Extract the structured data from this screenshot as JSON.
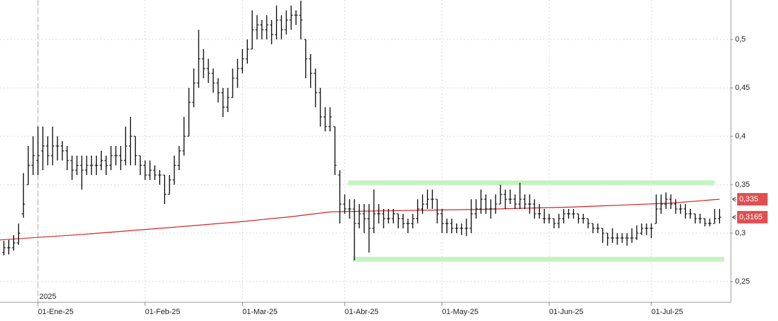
{
  "chart_data": {
    "type": "ohlc",
    "color": "#000000",
    "grid": true,
    "xlim": [
      -7.8,
      142.2
    ],
    "ylim": [
      0.2286,
      0.5407
    ],
    "yticks": [
      {
        "value": 0.25,
        "label": "0,25"
      },
      {
        "value": 0.3,
        "label": "0,3"
      },
      {
        "value": 0.35,
        "label": "0,35"
      },
      {
        "value": 0.4,
        "label": "0,4"
      },
      {
        "value": 0.45,
        "label": "0,45"
      },
      {
        "value": 0.5,
        "label": "0,5"
      }
    ],
    "xticks": [
      {
        "value": 0,
        "label": "01-Ene-25"
      },
      {
        "value": 22,
        "label": "01-Feb-25"
      },
      {
        "value": 42,
        "label": "01-Mar-25"
      },
      {
        "value": 63,
        "label": "01-Abr-25"
      },
      {
        "value": 83,
        "label": "01-May-25"
      },
      {
        "value": 105,
        "label": "01-Jun-25"
      },
      {
        "value": 126,
        "label": "01-Jul-25"
      }
    ],
    "year_marker": {
      "value": 0,
      "label": "2025"
    },
    "x": [
      -7,
      -6,
      -5,
      -4,
      -3,
      -2,
      -1,
      0,
      1,
      2,
      3,
      4,
      5,
      6,
      7,
      8,
      9,
      10,
      11,
      12,
      13,
      14,
      15,
      16,
      17,
      18,
      19,
      20,
      21,
      22,
      23,
      24,
      25,
      26,
      27,
      28,
      29,
      30,
      31,
      32,
      33,
      34,
      35,
      36,
      37,
      38,
      39,
      40,
      41,
      42,
      43,
      44,
      45,
      46,
      47,
      48,
      49,
      50,
      51,
      52,
      53,
      54,
      55,
      56,
      57,
      58,
      59,
      60,
      61,
      62,
      63,
      64,
      65,
      66,
      67,
      68,
      69,
      70,
      71,
      72,
      73,
      74,
      75,
      76,
      77,
      78,
      79,
      80,
      81,
      82,
      83,
      84,
      85,
      86,
      87,
      88,
      89,
      90,
      91,
      92,
      93,
      94,
      95,
      96,
      97,
      98,
      99,
      100,
      101,
      102,
      103,
      104,
      105,
      106,
      107,
      108,
      109,
      110,
      111,
      112,
      113,
      114,
      115,
      116,
      117,
      118,
      119,
      120,
      121,
      122,
      123,
      124,
      125,
      126,
      127,
      128,
      129,
      130,
      131,
      132,
      133,
      134,
      135,
      136,
      137,
      138,
      139,
      140
    ],
    "open": [
      0.28,
      0.285,
      0.285,
      0.29,
      0.32,
      0.35,
      0.37,
      0.375,
      0.385,
      0.39,
      0.38,
      0.39,
      0.39,
      0.385,
      0.375,
      0.365,
      0.37,
      0.365,
      0.37,
      0.37,
      0.37,
      0.375,
      0.37,
      0.38,
      0.38,
      0.375,
      0.39,
      0.4,
      0.38,
      0.37,
      0.36,
      0.365,
      0.36,
      0.36,
      0.34,
      0.355,
      0.37,
      0.385,
      0.4,
      0.435,
      0.455,
      0.48,
      0.47,
      0.465,
      0.455,
      0.445,
      0.43,
      0.44,
      0.46,
      0.47,
      0.48,
      0.49,
      0.51,
      0.515,
      0.51,
      0.515,
      0.505,
      0.52,
      0.51,
      0.52,
      0.525,
      0.525,
      0.5,
      0.48,
      0.465,
      0.445,
      0.42,
      0.41,
      0.41,
      0.36,
      0.33,
      0.325,
      0.325,
      0.31,
      0.32,
      0.315,
      0.305,
      0.32,
      0.32,
      0.315,
      0.315,
      0.32,
      0.315,
      0.31,
      0.31,
      0.315,
      0.325,
      0.33,
      0.335,
      0.335,
      0.32,
      0.31,
      0.31,
      0.305,
      0.305,
      0.305,
      0.305,
      0.32,
      0.325,
      0.335,
      0.325,
      0.325,
      0.33,
      0.34,
      0.335,
      0.335,
      0.33,
      0.335,
      0.33,
      0.33,
      0.32,
      0.315,
      0.315,
      0.315,
      0.31,
      0.315,
      0.32,
      0.32,
      0.32,
      0.315,
      0.315,
      0.31,
      0.305,
      0.305,
      0.3,
      0.295,
      0.295,
      0.295,
      0.295,
      0.295,
      0.295,
      0.3,
      0.305,
      0.305,
      0.31,
      0.325,
      0.33,
      0.335,
      0.33,
      0.325,
      0.325,
      0.32,
      0.32,
      0.315,
      0.315,
      0.31,
      0.31,
      0.315
    ],
    "high": [
      0.292,
      0.293,
      0.298,
      0.31,
      0.362,
      0.39,
      0.4,
      0.41,
      0.41,
      0.4,
      0.41,
      0.4,
      0.395,
      0.39,
      0.38,
      0.38,
      0.38,
      0.38,
      0.38,
      0.38,
      0.385,
      0.38,
      0.39,
      0.39,
      0.39,
      0.41,
      0.42,
      0.4,
      0.38,
      0.375,
      0.375,
      0.37,
      0.365,
      0.36,
      0.36,
      0.38,
      0.39,
      0.42,
      0.45,
      0.47,
      0.51,
      0.49,
      0.48,
      0.47,
      0.46,
      0.45,
      0.45,
      0.47,
      0.48,
      0.49,
      0.5,
      0.53,
      0.525,
      0.52,
      0.525,
      0.52,
      0.535,
      0.525,
      0.53,
      0.535,
      0.53,
      0.54,
      0.5,
      0.485,
      0.47,
      0.45,
      0.43,
      0.43,
      0.41,
      0.365,
      0.34,
      0.335,
      0.335,
      0.33,
      0.33,
      0.33,
      0.345,
      0.33,
      0.325,
      0.325,
      0.325,
      0.32,
      0.32,
      0.315,
      0.32,
      0.335,
      0.34,
      0.345,
      0.345,
      0.335,
      0.325,
      0.315,
      0.315,
      0.31,
      0.31,
      0.315,
      0.335,
      0.335,
      0.345,
      0.34,
      0.335,
      0.34,
      0.35,
      0.345,
      0.345,
      0.34,
      0.352,
      0.34,
      0.34,
      0.335,
      0.33,
      0.325,
      0.32,
      0.315,
      0.32,
      0.325,
      0.325,
      0.325,
      0.32,
      0.32,
      0.315,
      0.31,
      0.31,
      0.305,
      0.3,
      0.305,
      0.3,
      0.3,
      0.3,
      0.305,
      0.308,
      0.31,
      0.31,
      0.31,
      0.34,
      0.34,
      0.342,
      0.34,
      0.335,
      0.33,
      0.33,
      0.325,
      0.32,
      0.32,
      0.315,
      0.315,
      0.325,
      0.325
    ],
    "low": [
      0.277,
      0.278,
      0.282,
      0.288,
      0.316,
      0.35,
      0.36,
      0.36,
      0.365,
      0.37,
      0.37,
      0.375,
      0.375,
      0.365,
      0.355,
      0.36,
      0.345,
      0.36,
      0.36,
      0.36,
      0.365,
      0.36,
      0.365,
      0.37,
      0.365,
      0.37,
      0.37,
      0.37,
      0.36,
      0.355,
      0.355,
      0.355,
      0.35,
      0.33,
      0.34,
      0.35,
      0.365,
      0.38,
      0.4,
      0.43,
      0.45,
      0.46,
      0.455,
      0.445,
      0.435,
      0.42,
      0.425,
      0.44,
      0.45,
      0.465,
      0.475,
      0.49,
      0.5,
      0.5,
      0.5,
      0.495,
      0.5,
      0.5,
      0.505,
      0.51,
      0.515,
      0.5,
      0.46,
      0.45,
      0.43,
      0.41,
      0.405,
      0.405,
      0.36,
      0.31,
      0.32,
      0.315,
      0.272,
      0.305,
      0.3,
      0.28,
      0.3,
      0.31,
      0.305,
      0.31,
      0.31,
      0.305,
      0.305,
      0.3,
      0.305,
      0.31,
      0.32,
      0.325,
      0.325,
      0.31,
      0.3,
      0.3,
      0.3,
      0.3,
      0.298,
      0.297,
      0.3,
      0.315,
      0.32,
      0.32,
      0.315,
      0.32,
      0.33,
      0.325,
      0.33,
      0.325,
      0.325,
      0.325,
      0.32,
      0.315,
      0.315,
      0.31,
      0.31,
      0.305,
      0.305,
      0.31,
      0.315,
      0.315,
      0.31,
      0.31,
      0.305,
      0.3,
      0.3,
      0.29,
      0.287,
      0.29,
      0.288,
      0.29,
      0.287,
      0.29,
      0.293,
      0.298,
      0.298,
      0.295,
      0.31,
      0.32,
      0.325,
      0.325,
      0.32,
      0.32,
      0.315,
      0.315,
      0.31,
      0.31,
      0.307,
      0.307,
      0.31,
      0.31
    ],
    "close": [
      0.285,
      0.285,
      0.29,
      0.3,
      0.33,
      0.37,
      0.38,
      0.38,
      0.39,
      0.38,
      0.39,
      0.39,
      0.385,
      0.375,
      0.365,
      0.37,
      0.365,
      0.37,
      0.37,
      0.37,
      0.375,
      0.37,
      0.38,
      0.38,
      0.375,
      0.39,
      0.4,
      0.38,
      0.37,
      0.36,
      0.365,
      0.36,
      0.36,
      0.34,
      0.355,
      0.37,
      0.385,
      0.4,
      0.435,
      0.455,
      0.48,
      0.47,
      0.465,
      0.455,
      0.445,
      0.43,
      0.44,
      0.46,
      0.47,
      0.48,
      0.49,
      0.51,
      0.515,
      0.51,
      0.515,
      0.505,
      0.52,
      0.51,
      0.52,
      0.525,
      0.525,
      0.52,
      0.48,
      0.465,
      0.445,
      0.42,
      0.41,
      0.42,
      0.37,
      0.33,
      0.325,
      0.325,
      0.31,
      0.32,
      0.315,
      0.305,
      0.32,
      0.32,
      0.315,
      0.315,
      0.32,
      0.315,
      0.31,
      0.31,
      0.315,
      0.325,
      0.33,
      0.335,
      0.335,
      0.32,
      0.31,
      0.31,
      0.305,
      0.305,
      0.305,
      0.305,
      0.32,
      0.325,
      0.335,
      0.325,
      0.325,
      0.33,
      0.34,
      0.335,
      0.335,
      0.33,
      0.335,
      0.33,
      0.33,
      0.32,
      0.32,
      0.315,
      0.315,
      0.31,
      0.315,
      0.32,
      0.32,
      0.32,
      0.315,
      0.315,
      0.31,
      0.305,
      0.305,
      0.3,
      0.295,
      0.295,
      0.295,
      0.295,
      0.295,
      0.295,
      0.3,
      0.305,
      0.305,
      0.305,
      0.325,
      0.33,
      0.335,
      0.33,
      0.325,
      0.325,
      0.32,
      0.32,
      0.315,
      0.315,
      0.31,
      0.31,
      0.315,
      0.3165
    ],
    "moving_average": {
      "color": "#d62020",
      "x": [
        -7.8,
        10,
        30,
        42,
        52,
        60,
        70,
        90,
        110,
        130,
        140
      ],
      "values": [
        0.293,
        0.299,
        0.307,
        0.312,
        0.317,
        0.322,
        0.323,
        0.3245,
        0.327,
        0.331,
        0.335
      ]
    },
    "bands": [
      {
        "value": 0.352,
        "from": 63.7,
        "to": 139,
        "color": "#c6f2c0"
      },
      {
        "value": 0.273,
        "from": 64.7,
        "to": 141,
        "color": "#c6f2c0"
      }
    ],
    "last_labels": {
      "color": "#e05050",
      "items": [
        {
          "value": 0.335,
          "label": "0,335"
        },
        {
          "value": 0.3165,
          "label": "0,3165"
        }
      ]
    }
  }
}
